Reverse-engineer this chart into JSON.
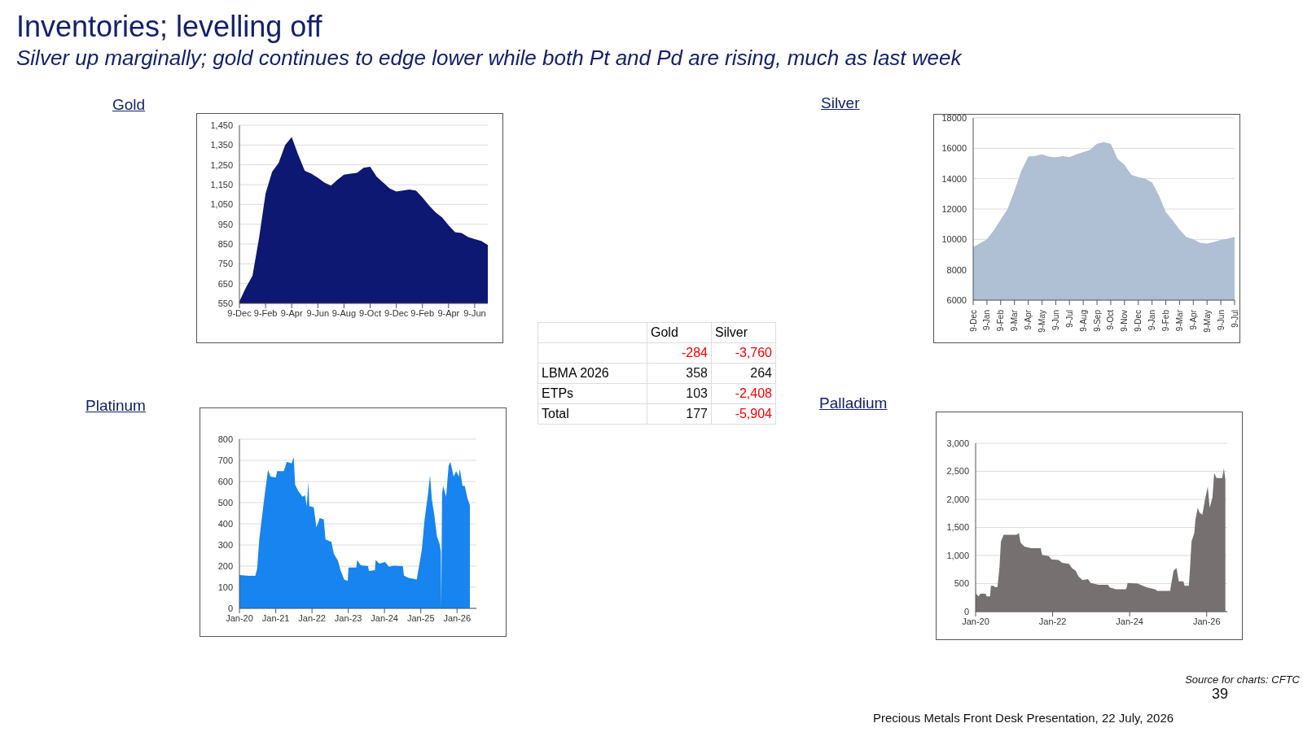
{
  "chart_data": [
    {
      "type": "other",
      "title": "Inventories; levelling off",
      "subtitle": "Silver up marginally; gold continues to edge lower while both Pt and Pd are rising, much as last week",
      "annotations": [
        "Source for charts: CFTC",
        "39",
        "Precious Metals Front Desk Presentation, 22 July, 2026"
      ]
    },
    {
      "type": "area",
      "title": "Gold",
      "color": "#0d1872",
      "grid": "y",
      "ylim": [
        550,
        1450
      ],
      "yticks": [
        550,
        650,
        750,
        850,
        950,
        {
          "value": 1050,
          "label": "1,050"
        },
        {
          "value": 1150,
          "label": "1,150"
        },
        {
          "value": 1250,
          "label": "1,250"
        },
        {
          "value": 1350,
          "label": "1,350"
        },
        {
          "value": 1450,
          "label": "1,450"
        }
      ],
      "categories": [
        "9-Dec",
        null,
        null,
        null,
        "9-Feb",
        null,
        null,
        null,
        "9-Apr",
        null,
        null,
        null,
        "9-Jun",
        null,
        null,
        null,
        "9-Aug",
        null,
        null,
        null,
        "9-Oct",
        null,
        null,
        null,
        "9-Dec",
        null,
        null,
        null,
        "9-Feb",
        null,
        null,
        null,
        "9-Apr",
        null,
        null,
        null,
        "9-Jun",
        null,
        null
      ],
      "values": [
        560,
        630,
        690,
        880,
        1105,
        1215,
        1260,
        1350,
        1390,
        1300,
        1220,
        1205,
        1185,
        1160,
        1145,
        1175,
        1200,
        1205,
        1210,
        1235,
        1240,
        1190,
        1160,
        1130,
        1115,
        1120,
        1125,
        1120,
        1085,
        1045,
        1010,
        985,
        945,
        910,
        905,
        885,
        875,
        865,
        845
      ]
    },
    {
      "type": "area",
      "title": "Silver",
      "color": "#afbfd4",
      "grid": "y",
      "ylim": [
        6000,
        18000
      ],
      "yticks": [
        6000,
        8000,
        10000,
        12000,
        14000,
        16000,
        18000
      ],
      "categories": [
        "9-Dec",
        null,
        "9-Jan",
        null,
        "9-Feb",
        null,
        "9-Mar",
        null,
        "9-Apr",
        null,
        "9-May",
        null,
        "9-Jun",
        null,
        "9-Jul",
        null,
        "9-Aug",
        null,
        "9-Sep",
        null,
        "9-Oct",
        null,
        "9-Nov",
        null,
        "9-Dec",
        null,
        "9-Jan",
        null,
        "9-Feb",
        null,
        "9-Mar",
        null,
        "9-Apr",
        null,
        "9-May",
        null,
        "9-Jun",
        null,
        "9-Jul"
      ],
      "values": [
        9500,
        9750,
        10000,
        10600,
        11300,
        12000,
        13200,
        14500,
        15450,
        15500,
        15600,
        15450,
        15400,
        15480,
        15410,
        15600,
        15750,
        15900,
        16300,
        16400,
        16300,
        15300,
        14900,
        14250,
        14100,
        14000,
        13750,
        12900,
        11800,
        11250,
        10650,
        10150,
        10000,
        9780,
        9720,
        9830,
        9970,
        10050,
        10170
      ]
    },
    {
      "type": "other",
      "categories": [
        "Gold",
        "Silver"
      ],
      "y_categories": [
        null,
        "LBMA 2026",
        "ETPs",
        "Total"
      ],
      "cell_labels": [
        [
          "-284",
          "-3,760"
        ],
        [
          "358",
          "264"
        ],
        [
          "103",
          "-2,408"
        ],
        [
          "177",
          "-5,904"
        ]
      ],
      "colors": [
        [
          "#ff0000",
          "#ff0000"
        ],
        [
          "#111111",
          "#111111"
        ],
        [
          "#111111",
          "#ff0000"
        ],
        [
          "#111111",
          "#ff0000"
        ]
      ]
    },
    {
      "type": "area",
      "title": "Platinum",
      "color": "#1784ef",
      "grid": "y",
      "xlim": [
        "2020-01-01",
        "2026-07-15"
      ],
      "ylim": [
        0,
        800
      ],
      "xticks": [
        {
          "value": "2020-01",
          "label": "Jan-20"
        },
        {
          "value": "2021-01",
          "label": "Jan-21"
        },
        {
          "value": "2022-01",
          "label": "Jan-22"
        },
        {
          "value": "2023-01",
          "label": "Jan-23"
        },
        {
          "value": "2024-01",
          "label": "Jan-24"
        },
        {
          "value": "2025-01",
          "label": "Jan-25"
        },
        {
          "value": "2026-01",
          "label": "Jan-26"
        }
      ],
      "yticks": [
        0,
        100,
        200,
        300,
        400,
        500,
        600,
        700,
        800
      ],
      "x": [
        "2020-01-01",
        "2020-04-08",
        "2020-06-09",
        "2020-06-27",
        "2020-07-19",
        "2020-08-14",
        "2020-09-09",
        "2020-10-15",
        "2020-11-10",
        "2021-01-01",
        "2021-01-15",
        "2021-03-23",
        "2021-04-22",
        "2021-06-09",
        "2021-07-01",
        "2021-07-15",
        "2021-08-17",
        "2021-09-27",
        "2021-10-22",
        "2021-11-10",
        "2021-11-25",
        "2021-12-05",
        "2022-01-19",
        "2022-02-14",
        "2022-03-20",
        "2022-04-29",
        "2022-05-17",
        "2022-07-15",
        "2022-08-10",
        "2022-09-20",
        "2022-10-15",
        "2022-11-21",
        "2022-12-27",
        "2023-01-04",
        "2023-03-23",
        "2023-04-01",
        "2023-05-07",
        "2023-07-19",
        "2023-07-29",
        "2023-09-27",
        "2023-10-04",
        "2023-11-10",
        "2024-01-08",
        "2024-02-14",
        "2024-04-04",
        "2024-07-04",
        "2024-07-15",
        "2024-09-05",
        "2024-11-21",
        "2024-12-16",
        "2025-01-11",
        "2025-02-07",
        "2025-03-16",
        "2025-04-04",
        "2025-04-22",
        "2025-05-17",
        "2025-06-13",
        "2025-07-08",
        "2025-07-22",
        "2025-07-26",
        "2025-08-03",
        "2025-08-14",
        "2025-09-13",
        "2025-10-08",
        "2025-10-26",
        "2025-11-28",
        "2025-12-23",
        "2026-01-19",
        "2026-01-29",
        "2026-02-25",
        "2026-03-20",
        "2026-04-15",
        "2026-05-10"
      ],
      "values": [
        158,
        154,
        154,
        187,
        326,
        427,
        528,
        655,
        623,
        619,
        649,
        649,
        693,
        686,
        714,
        585,
        554,
        528,
        535,
        484,
        598,
        484,
        478,
        383,
        427,
        421,
        326,
        314,
        257,
        225,
        181,
        137,
        130,
        193,
        193,
        229,
        204,
        200,
        177,
        181,
        229,
        212,
        219,
        197,
        202,
        200,
        155,
        143,
        137,
        206,
        276,
        415,
        547,
        630,
        516,
        440,
        339,
        307,
        269,
        0,
        541,
        579,
        528,
        674,
        693,
        623,
        649,
        623,
        661,
        579,
        579,
        522,
        488
      ]
    },
    {
      "type": "area",
      "title": "Palladium",
      "color": "#767170",
      "grid": "y",
      "xlim": [
        "2020-01-01",
        "2026-07-15"
      ],
      "ylim": [
        0,
        3000
      ],
      "xticks": [
        {
          "value": "2020-01",
          "label": "Jan-20"
        },
        {
          "value": "2022-01",
          "label": "Jan-22"
        },
        {
          "value": "2024-01",
          "label": "Jan-24"
        },
        {
          "value": "2026-01",
          "label": "Jan-26"
        }
      ],
      "yticks": [
        0,
        500,
        {
          "value": 1000,
          "label": "1,000"
        },
        {
          "value": 1500,
          "label": "1,500"
        },
        {
          "value": 2000,
          "label": "2,000"
        },
        {
          "value": 2500,
          "label": "2,500"
        },
        {
          "value": 3000,
          "label": "3,000"
        }
      ],
      "x": [
        "2020-01-01",
        "2020-01-04",
        "2020-01-29",
        "2020-02-14",
        "2020-04-04",
        "2020-04-15",
        "2020-05-17",
        "2020-05-25",
        "2020-06-20",
        "2020-07-01",
        "2020-07-26",
        "2020-08-14",
        "2020-08-28",
        "2020-09-23",
        "2021-01-22",
        "2021-02-14",
        "2021-03-02",
        "2021-04-08",
        "2021-06-13",
        "2021-09-09",
        "2021-09-23",
        "2021-11-25",
        "2021-12-20",
        "2022-02-25",
        "2022-04-01",
        "2022-06-05",
        "2022-07-01",
        "2022-08-07",
        "2022-09-02",
        "2022-10-11",
        "2022-12-02",
        "2022-12-27",
        "2023-03-13",
        "2023-06-09",
        "2023-06-27",
        "2023-08-25",
        "2023-11-25",
        "2023-12-05",
        "2023-12-13",
        "2024-03-16",
        "2024-06-13",
        "2024-08-28",
        "2024-09-20",
        "2025-01-19",
        "2025-01-29",
        "2025-02-21",
        "2025-03-20",
        "2025-04-11",
        "2025-05-25",
        "2025-06-05",
        "2025-07-15",
        "2025-07-26",
        "2025-08-10",
        "2025-09-05",
        "2025-09-16",
        "2025-10-08",
        "2025-10-26",
        "2025-11-21",
        "2025-12-16",
        "2026-01-11",
        "2026-01-29",
        "2026-02-25",
        "2026-03-13",
        "2026-04-04",
        "2026-05-28",
        "2026-06-13",
        "2026-06-27"
      ],
      "values": [
        490,
        320,
        270,
        320,
        320,
        270,
        270,
        460,
        460,
        440,
        440,
        780,
        1250,
        1370,
        1370,
        1400,
        1230,
        1160,
        1130,
        1130,
        1010,
        990,
        930,
        920,
        870,
        850,
        780,
        730,
        630,
        560,
        580,
        510,
        480,
        480,
        430,
        400,
        400,
        430,
        510,
        500,
        430,
        400,
        370,
        370,
        490,
        730,
        780,
        540,
        540,
        460,
        460,
        750,
        1250,
        1400,
        1640,
        1850,
        1760,
        1730,
        2000,
        2230,
        1850,
        2040,
        2470,
        2380,
        2380,
        2550,
        2350
      ]
    }
  ]
}
